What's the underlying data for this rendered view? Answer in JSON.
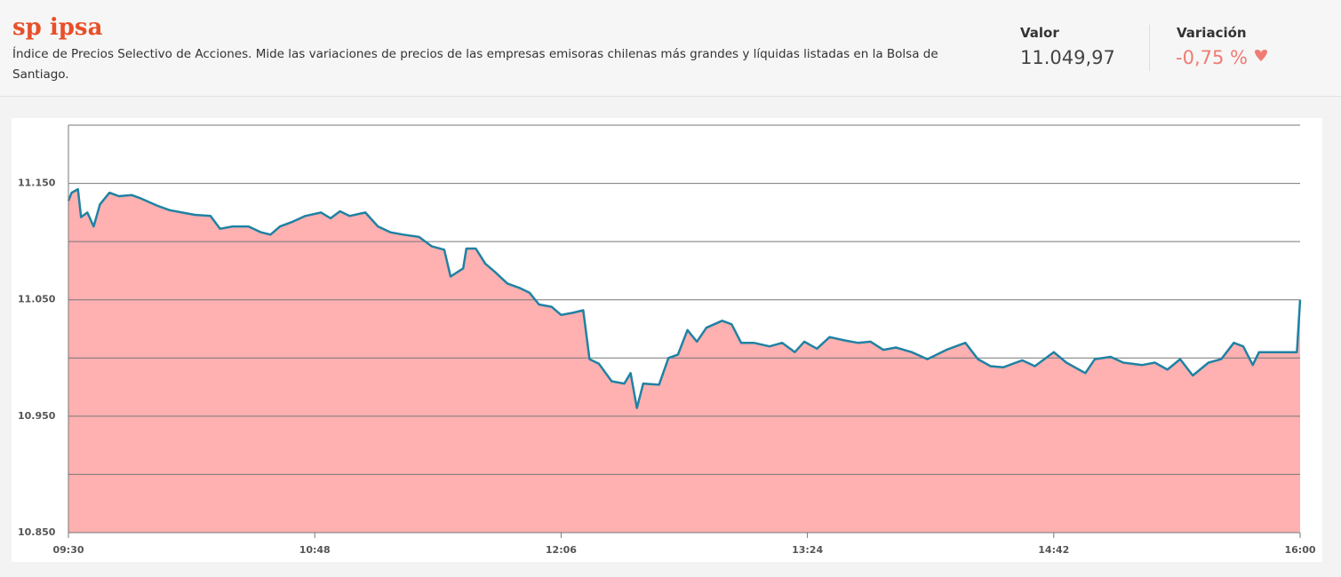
{
  "header": {
    "title": "sp ipsa",
    "description": "Índice de Precios Selectivo de Acciones. Mide las variaciones de precios de las empresas emisoras chilenas más grandes y líquidas listadas en la Bolsa de Santiago.",
    "value_label": "Valor",
    "value": "11.049,97",
    "change_label": "Variación",
    "change": "-0,75 %"
  },
  "chart_data": {
    "type": "area",
    "x": [
      "09:30",
      "09:31",
      "09:33",
      "09:34",
      "09:36",
      "09:38",
      "09:40",
      "09:43",
      "09:46",
      "09:50",
      "09:53",
      "09:58",
      "10:02",
      "10:06",
      "10:10",
      "10:15",
      "10:18",
      "10:22",
      "10:27",
      "10:31",
      "10:34",
      "10:37",
      "10:41",
      "10:45",
      "10:50",
      "10:53",
      "10:56",
      "10:59",
      "11:04",
      "11:08",
      "11:12",
      "11:16",
      "11:21",
      "11:25",
      "11:29",
      "11:31",
      "11:35",
      "11:36",
      "11:39",
      "11:42",
      "11:45",
      "11:49",
      "11:53",
      "11:56",
      "11:59",
      "12:03",
      "12:06",
      "12:10",
      "12:13",
      "12:15",
      "12:18",
      "12:22",
      "12:26",
      "12:28",
      "12:30",
      "12:32",
      "12:37",
      "12:40",
      "12:43",
      "12:46",
      "12:49",
      "12:52",
      "12:57",
      "13:00",
      "13:03",
      "13:07",
      "13:12",
      "13:16",
      "13:20",
      "13:23",
      "13:27",
      "13:31",
      "13:36",
      "13:40",
      "13:44",
      "13:48",
      "13:52",
      "13:57",
      "14:02",
      "14:08",
      "14:14",
      "14:18",
      "14:22",
      "14:26",
      "14:32",
      "14:36",
      "14:42",
      "14:46",
      "14:52",
      "14:55",
      "15:00",
      "15:04",
      "15:10",
      "15:14",
      "15:18",
      "15:22",
      "15:26",
      "15:31",
      "15:35",
      "15:39",
      "15:42",
      "15:45",
      "15:47",
      "15:59",
      "16:00"
    ],
    "values": [
      11135,
      11142,
      11145,
      11121,
      11125,
      11113,
      11132,
      11142,
      11139,
      11140,
      11137,
      11131,
      11127,
      11125,
      11123,
      11122,
      11111,
      11113,
      11113,
      11108,
      11106,
      11113,
      11117,
      11122,
      11125,
      11120,
      11126,
      11122,
      11125,
      11113,
      11108,
      11106,
      11104,
      11096,
      11093,
      11070,
      11077,
      11094,
      11094,
      11081,
      11074,
      11064,
      11060,
      11056,
      11046,
      11044,
      11037,
      11039,
      11041,
      10999,
      10995,
      10980,
      10978,
      10987,
      10957,
      10978,
      10977,
      11000,
      11003,
      11024,
      11014,
      11026,
      11032,
      11029,
      11013,
      11013,
      11010,
      11013,
      11005,
      11014,
      11008,
      11018,
      11015,
      11013,
      11014,
      11007,
      11009,
      11005,
      10999,
      11007,
      11013,
      10999,
      10993,
      10992,
      10998,
      10993,
      11005,
      10996,
      10987,
      10999,
      11001,
      10996,
      10994,
      10996,
      10990,
      10999,
      10985,
      10996,
      10999,
      11013,
      11010,
      10994,
      11005,
      11005,
      11050
    ],
    "line_color": "#1f82a3",
    "fill_color": "#ffb0b1",
    "ylim": [
      10850,
      11200
    ],
    "yticks": [
      {
        "value": 10850,
        "label": "10.850"
      },
      {
        "value": 10950,
        "label": "10.950"
      },
      {
        "value": 11050,
        "label": "11.050"
      },
      {
        "value": 11150,
        "label": "11.150"
      }
    ],
    "ygrid": [
      10900,
      10950,
      11000,
      11050,
      11100,
      11150,
      11200
    ],
    "xlim": [
      "09:30",
      "16:00"
    ],
    "xticks": [
      "09:30",
      "10:48",
      "12:06",
      "13:24",
      "14:42",
      "16:00"
    ],
    "grid": true
  }
}
